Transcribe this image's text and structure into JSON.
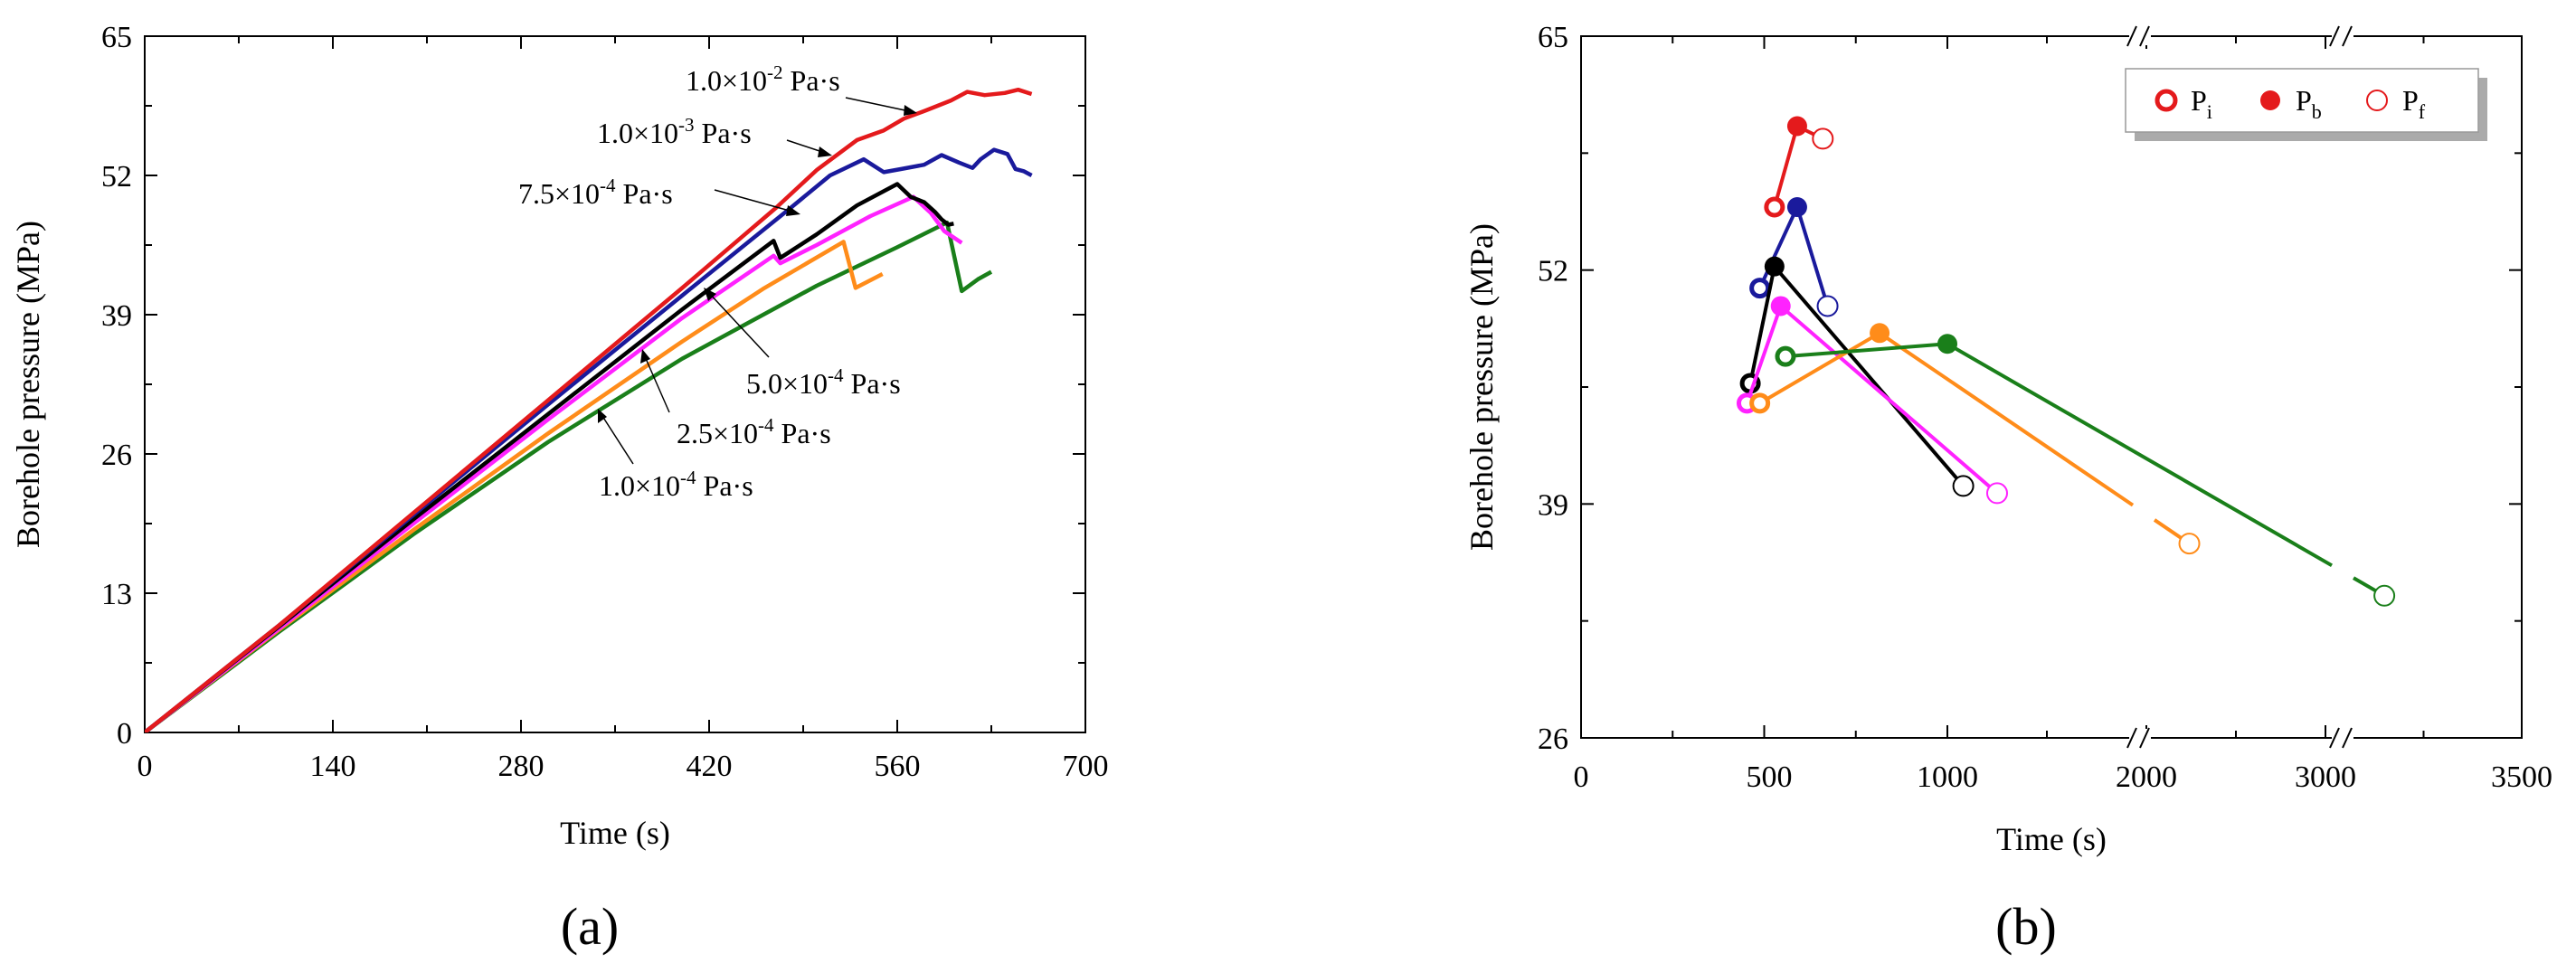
{
  "chart_data": [
    {
      "type": "line",
      "panel_label": "(a)",
      "xlabel": "Time (s)",
      "ylabel": "Borehole pressure (MPa)",
      "xlim": [
        0,
        700
      ],
      "ylim": [
        0,
        65
      ],
      "xticks": [
        0,
        140,
        280,
        420,
        560,
        700
      ],
      "yticks": [
        0,
        13,
        26,
        39,
        52,
        65
      ],
      "series": [
        {
          "name": "1.0×10-2 Pa·s",
          "label": {
            "base": "1.0×10",
            "exp": "-2",
            "unit": " Pa·s"
          },
          "color": "#e41a1c",
          "points": [
            [
              0,
              0
            ],
            [
              100,
              10
            ],
            [
              200,
              20.5
            ],
            [
              300,
              31
            ],
            [
              400,
              41.5
            ],
            [
              470,
              49
            ],
            [
              500,
              52.5
            ],
            [
              530,
              55.3
            ],
            [
              550,
              56.2
            ],
            [
              565,
              57.3
            ],
            [
              580,
              58
            ],
            [
              590,
              58.5
            ],
            [
              600,
              59
            ],
            [
              612,
              59.8
            ],
            [
              625,
              59.5
            ],
            [
              640,
              59.7
            ],
            [
              650,
              60
            ],
            [
              660,
              59.6
            ]
          ]
        },
        {
          "name": "1.0×10-3 Pa·s",
          "label": {
            "base": "1.0×10",
            "exp": "-3",
            "unit": " Pa·s"
          },
          "color": "#1a1a9c",
          "points": [
            [
              0,
              0
            ],
            [
              100,
              10
            ],
            [
              200,
              20.3
            ],
            [
              300,
              30.6
            ],
            [
              400,
              40.8
            ],
            [
              480,
              48.9
            ],
            [
              510,
              52
            ],
            [
              535,
              53.5
            ],
            [
              550,
              52.3
            ],
            [
              563,
              52.6
            ],
            [
              580,
              53
            ],
            [
              593,
              53.9
            ],
            [
              606,
              53.2
            ],
            [
              616,
              52.7
            ],
            [
              622,
              53.5
            ],
            [
              632,
              54.4
            ],
            [
              642,
              54
            ],
            [
              648,
              52.6
            ],
            [
              654,
              52.4
            ],
            [
              660,
              52
            ]
          ]
        },
        {
          "name": "7.5×10-4 Pa·s",
          "label": {
            "base": "7.5×10",
            "exp": "-4",
            "unit": " Pa·s"
          },
          "color": "#000000",
          "points": [
            [
              0,
              0
            ],
            [
              100,
              9.9
            ],
            [
              200,
              19.9
            ],
            [
              300,
              29.7
            ],
            [
              400,
              39.5
            ],
            [
              468,
              45.9
            ],
            [
              473,
              44.3
            ],
            [
              500,
              46.5
            ],
            [
              530,
              49.2
            ],
            [
              560,
              51.2
            ],
            [
              570,
              50
            ],
            [
              580,
              49.5
            ],
            [
              588,
              48.6
            ],
            [
              593,
              47.9
            ],
            [
              598,
              47.4
            ],
            [
              602,
              47.5
            ]
          ]
        },
        {
          "name": "5.0×10-4 Pa·s",
          "label": {
            "base": "5.0×10",
            "exp": "-4",
            "unit": " Pa·s"
          },
          "color": "#ff22ff",
          "points": [
            [
              0,
              0
            ],
            [
              100,
              9.7
            ],
            [
              200,
              19.5
            ],
            [
              300,
              29.2
            ],
            [
              400,
              38.7
            ],
            [
              468,
              44.5
            ],
            [
              473,
              43.8
            ],
            [
              500,
              45.5
            ],
            [
              540,
              48.2
            ],
            [
              572,
              50
            ],
            [
              585,
              48.5
            ],
            [
              595,
              46.8
            ],
            [
              608,
              45.7
            ]
          ]
        },
        {
          "name": "2.5×10-4 Pa·s",
          "label": {
            "base": "2.5×10",
            "exp": "-4",
            "unit": " Pa·s"
          },
          "color": "#ff8c1a",
          "points": [
            [
              0,
              0
            ],
            [
              100,
              9.6
            ],
            [
              200,
              18.9
            ],
            [
              300,
              27.9
            ],
            [
              400,
              36.5
            ],
            [
              460,
              41.4
            ],
            [
              520,
              45.8
            ],
            [
              529,
              41.5
            ],
            [
              549,
              42.8
            ]
          ]
        },
        {
          "name": "1.0×10-4 Pa·s",
          "label": {
            "base": "1.0×10",
            "exp": "-4",
            "unit": " Pa·s"
          },
          "color": "#1a7f1a",
          "points": [
            [
              0,
              0
            ],
            [
              100,
              9.4
            ],
            [
              200,
              18.5
            ],
            [
              300,
              27.1
            ],
            [
              400,
              34.9
            ],
            [
              500,
              41.7
            ],
            [
              560,
              45.3
            ],
            [
              597,
              47.6
            ],
            [
              608,
              41.2
            ],
            [
              620,
              42.3
            ],
            [
              630,
              43
            ]
          ]
        }
      ]
    },
    {
      "type": "scatter",
      "panel_label": "(b)",
      "xlabel": "Time (s)",
      "ylabel": "Borehole pressure (MPa)",
      "xlim": [
        0,
        3500
      ],
      "ylim": [
        26,
        65
      ],
      "xticks": [
        "0",
        "500",
        "1000",
        "2000",
        "3000",
        "3500"
      ],
      "yticks": [
        26,
        39,
        52,
        65
      ],
      "axis_breaks": [
        "//",
        "//"
      ],
      "legend": {
        "position": "top-right",
        "items": [
          {
            "symbol": "P",
            "sub": "i",
            "marker": "bold-open-circle"
          },
          {
            "symbol": "P",
            "sub": "b",
            "marker": "filled-circle"
          },
          {
            "symbol": "P",
            "sub": "f",
            "marker": "open-circle"
          }
        ],
        "color": "#e41a1c"
      },
      "series": [
        {
          "name": "1.0×10-2 Pa·s",
          "color": "#e41a1c",
          "Pi": [
            528,
            55.5
          ],
          "Pb": [
            590,
            60
          ],
          "Pf": [
            660,
            59.3
          ],
          "Pf_broken": false
        },
        {
          "name": "1.0×10-3 Pa·s",
          "color": "#1a1a9c",
          "Pi": [
            488,
            51
          ],
          "Pb": [
            590,
            55.5
          ],
          "Pf": [
            673,
            50
          ],
          "Pf_broken": false
        },
        {
          "name": "7.5×10-4 Pa·s",
          "color": "#000000",
          "Pi": [
            462,
            45.7
          ],
          "Pb": [
            528,
            52.2
          ],
          "Pf": [
            1080,
            40
          ],
          "Pf_broken": false
        },
        {
          "name": "5.0×10-4 Pa·s",
          "color": "#ff22ff",
          "Pi": [
            453,
            44.6
          ],
          "Pb": [
            545,
            50
          ],
          "Pf": [
            1250,
            39.6
          ],
          "Pf_broken": false
        },
        {
          "name": "2.5×10-4 Pa·s",
          "color": "#ff8c1a",
          "Pi": [
            488,
            44.6
          ],
          "Pb": [
            815,
            48.5
          ],
          "Pf": [
            2240,
            36.8
          ],
          "Pf_broken": true
        },
        {
          "name": "1.0×10-4 Pa·s",
          "color": "#1a7f1a",
          "Pi": [
            558,
            47.2
          ],
          "Pb": [
            1000,
            47.9
          ],
          "Pf": [
            3150,
            33.9
          ],
          "Pf_broken": true
        }
      ]
    }
  ]
}
